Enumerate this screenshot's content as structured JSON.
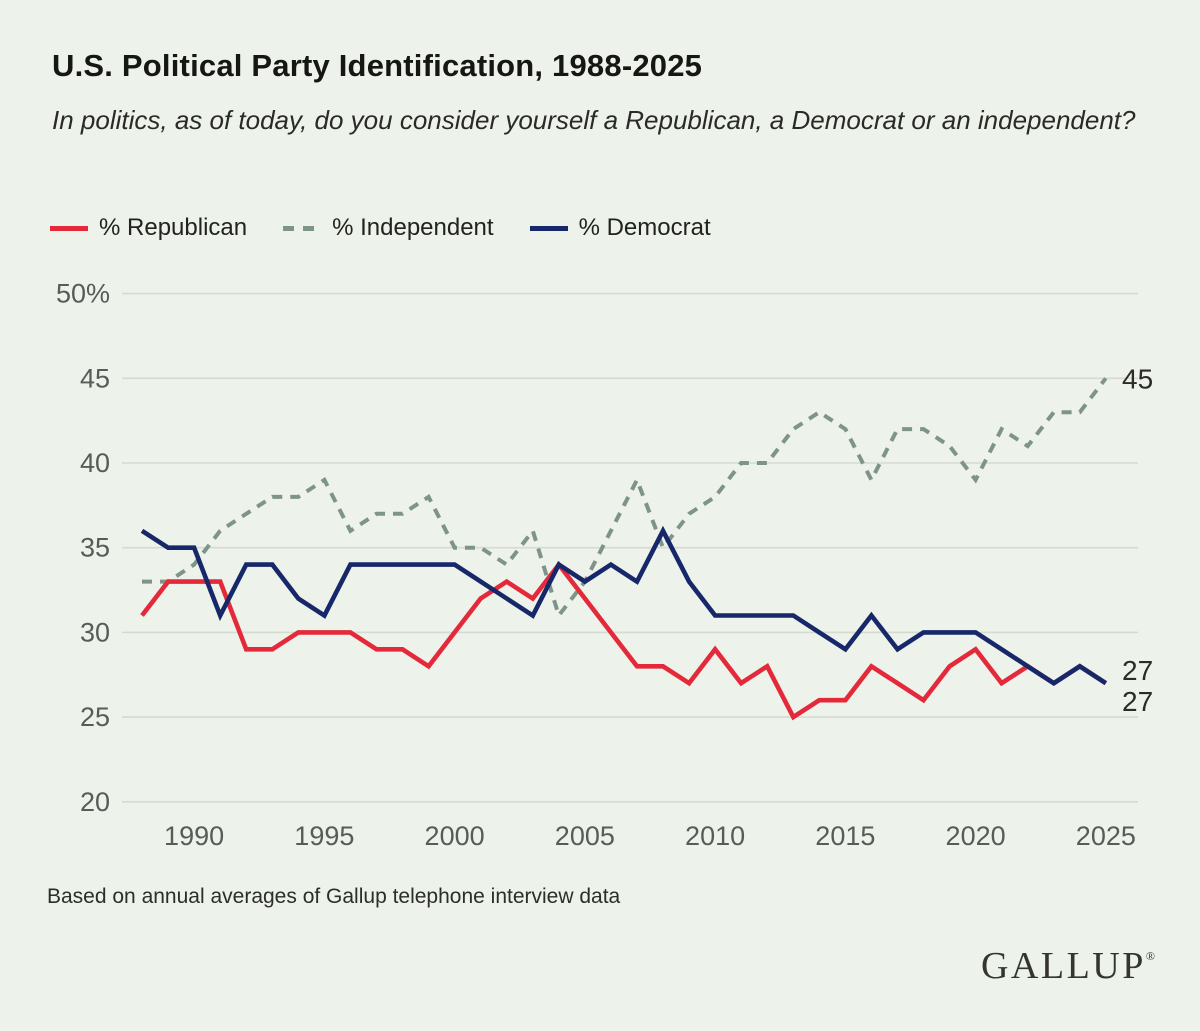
{
  "title": "U.S. Political Party Identification, 1988-2025",
  "subtitle": "In politics, as of today, do you consider yourself a Republican, a Democrat or an independent?",
  "legend": [
    {
      "label": "% Republican",
      "color": "#e4293a",
      "dashed": false
    },
    {
      "label": "% Independent",
      "color": "#7e948b",
      "dashed": true
    },
    {
      "label": "% Democrat",
      "color": "#17286a",
      "dashed": false
    }
  ],
  "footer": "Based on annual averages of Gallup telephone interview data",
  "logo_text": "GALLUP",
  "logo_reg_mark": "®",
  "colors": {
    "background": "#edf2ea",
    "gridline": "#d6dbd2",
    "axis_text": "#565c58",
    "end_label_text": "#2b2b29",
    "republican": "#e4293a",
    "independent": "#7e948b",
    "democrat": "#17286a"
  },
  "chart_data": {
    "type": "line",
    "x": [
      1988,
      1989,
      1990,
      1991,
      1992,
      1993,
      1994,
      1995,
      1996,
      1997,
      1998,
      1999,
      2000,
      2001,
      2002,
      2003,
      2004,
      2005,
      2006,
      2007,
      2008,
      2009,
      2010,
      2011,
      2012,
      2013,
      2014,
      2015,
      2016,
      2017,
      2018,
      2019,
      2020,
      2021,
      2022,
      2023,
      2024,
      2025
    ],
    "x_ticks": [
      1990,
      1995,
      2000,
      2005,
      2010,
      2015,
      2020,
      2025
    ],
    "y_tick_values": [
      50,
      45,
      40,
      35,
      30,
      25,
      20
    ],
    "y_tick_labels": [
      "50%",
      "45",
      "40",
      "35",
      "30",
      "25",
      "20"
    ],
    "ylim": [
      20,
      50
    ],
    "grid": true,
    "legend_position": "top-left",
    "series": [
      {
        "name": "% Republican",
        "slug": "republican-line",
        "color": "#e4293a",
        "dashed": false,
        "values": [
          31,
          33,
          33,
          33,
          29,
          29,
          30,
          30,
          30,
          29,
          29,
          28,
          30,
          32,
          33,
          32,
          34,
          32,
          30,
          28,
          28,
          27,
          29,
          27,
          28,
          25,
          26,
          26,
          28,
          27,
          26,
          28,
          29,
          27,
          28,
          27,
          28,
          27
        ]
      },
      {
        "name": "% Independent",
        "slug": "independent-line",
        "color": "#7e948b",
        "dashed": true,
        "values": [
          33,
          33,
          34,
          36,
          37,
          38,
          38,
          39,
          36,
          37,
          37,
          38,
          35,
          35,
          34,
          36,
          31,
          33,
          36,
          39,
          35,
          37,
          38,
          40,
          40,
          42,
          43,
          42,
          39,
          42,
          42,
          41,
          39,
          42,
          41,
          43,
          43,
          45
        ]
      },
      {
        "name": "% Democrat",
        "slug": "democrat-line",
        "color": "#17286a",
        "dashed": false,
        "values": [
          36,
          35,
          35,
          31,
          34,
          34,
          32,
          31,
          34,
          34,
          34,
          34,
          34,
          33,
          32,
          31,
          34,
          33,
          34,
          33,
          36,
          33,
          31,
          31,
          31,
          31,
          30,
          29,
          31,
          29,
          30,
          30,
          30,
          29,
          28,
          27,
          28,
          27
        ]
      }
    ],
    "end_labels": [
      {
        "text": "45",
        "series": 1,
        "dy": 0
      },
      {
        "text": "27",
        "series": 2,
        "dy": -13
      },
      {
        "text": "27",
        "series": 0,
        "dy": 18
      }
    ]
  }
}
